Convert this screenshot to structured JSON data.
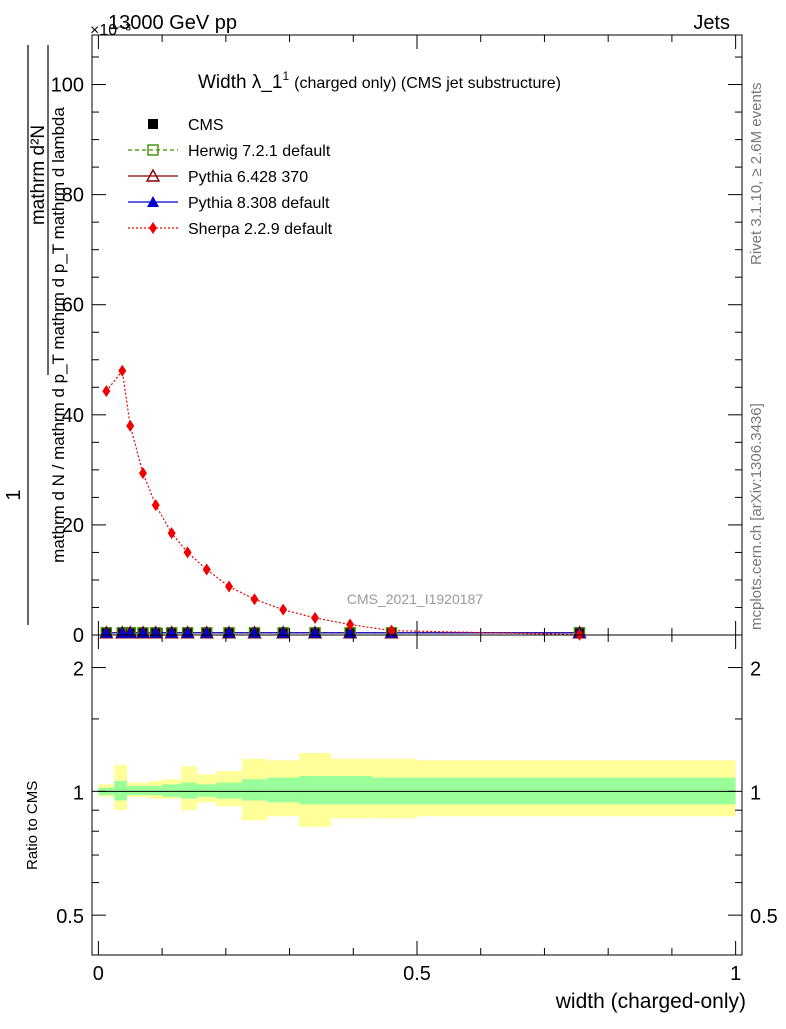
{
  "header": {
    "left": "13000 GeV pp",
    "right": "Jets",
    "exponent": "×10⁻³"
  },
  "side_labels": {
    "rivet": "Rivet 3.1.10, ≥ 2.6M events",
    "mcplots": "mcplots.cern.ch [arXiv:1306.3436]"
  },
  "watermark": "CMS_2021_I1920187",
  "chart_data": [
    {
      "panel": "main",
      "type": "line",
      "title": "Width λ_1¹ (charged only) (CMS jet substructure)",
      "title_main": "Width λ_1",
      "title_sup": "1",
      "title_rest": "(charged only) (CMS jet substructure)",
      "ylabel_num": "mathrm d²N",
      "ylabel_den": "mathrm d N / mathrm d p_T mathrm d p_T mathrm d lambda",
      "ylabel_one": "1",
      "ylim": [
        0,
        109
      ],
      "yticks": [
        0,
        20,
        40,
        60,
        80,
        100
      ],
      "xlim": [
        -0.01,
        1.01
      ],
      "x": [
        0.0125,
        0.0375,
        0.05,
        0.07,
        0.09,
        0.115,
        0.14,
        0.17,
        0.205,
        0.245,
        0.29,
        0.34,
        0.395,
        0.46,
        0.755
      ],
      "series": [
        {
          "name": "CMS",
          "marker": "square-filled",
          "color": "#000000",
          "values": [
            0.4,
            0.4,
            0.4,
            0.4,
            0.4,
            0.4,
            0.4,
            0.4,
            0.4,
            0.4,
            0.4,
            0.4,
            0.4,
            0.4,
            0.4
          ]
        },
        {
          "name": "Herwig 7.2.1 default",
          "marker": "square-open",
          "color": "#3a8f00",
          "line": "dashed",
          "values": [
            0.4,
            0.4,
            0.4,
            0.4,
            0.4,
            0.4,
            0.4,
            0.4,
            0.4,
            0.4,
            0.4,
            0.4,
            0.4,
            0.4,
            0.4
          ]
        },
        {
          "name": "Pythia 6.428 370",
          "marker": "triangle-open",
          "color": "#8b0000",
          "line": "solid",
          "values": [
            0.4,
            0.4,
            0.4,
            0.4,
            0.4,
            0.4,
            0.4,
            0.4,
            0.4,
            0.4,
            0.4,
            0.4,
            0.4,
            0.4,
            0.4
          ]
        },
        {
          "name": "Pythia 8.308 default",
          "marker": "triangle-filled",
          "color": "#0000cc",
          "line": "solid",
          "values": [
            0.4,
            0.4,
            0.4,
            0.4,
            0.4,
            0.4,
            0.4,
            0.4,
            0.4,
            0.4,
            0.4,
            0.4,
            0.4,
            0.4,
            0.4
          ]
        },
        {
          "name": "Sherpa 2.2.9 default",
          "marker": "diamond-filled",
          "color": "#ee0000",
          "line": "dotted",
          "values": [
            44.3,
            48.0,
            38.0,
            29.4,
            23.6,
            18.5,
            15.0,
            11.9,
            8.8,
            6.5,
            4.6,
            3.1,
            1.9,
            0.8,
            0.05
          ]
        }
      ]
    },
    {
      "panel": "ratio",
      "type": "area",
      "ylabel": "Ratio to CMS",
      "xlabel": "width (charged-only)",
      "ylim": [
        0.4,
        2.4
      ],
      "yscale": "log",
      "yticks": [
        0.5,
        1,
        2
      ],
      "xticks": [
        0,
        0.5,
        1
      ],
      "bins": [
        0,
        0.025,
        0.045,
        0.06,
        0.08,
        0.1,
        0.13,
        0.155,
        0.185,
        0.225,
        0.265,
        0.315,
        0.365,
        0.43,
        0.5,
        1.0
      ],
      "stat_band_low": [
        0.98,
        0.95,
        0.98,
        0.98,
        0.98,
        0.97,
        0.96,
        0.97,
        0.96,
        0.95,
        0.94,
        0.93,
        0.93,
        0.93,
        0.93
      ],
      "stat_band_high": [
        1.02,
        1.06,
        1.03,
        1.03,
        1.03,
        1.04,
        1.05,
        1.04,
        1.05,
        1.07,
        1.08,
        1.09,
        1.09,
        1.08,
        1.08
      ],
      "syst_band_low": [
        0.97,
        0.9,
        0.97,
        0.97,
        0.96,
        0.96,
        0.9,
        0.94,
        0.92,
        0.85,
        0.87,
        0.82,
        0.86,
        0.86,
        0.87
      ],
      "syst_band_high": [
        1.04,
        1.16,
        1.05,
        1.05,
        1.06,
        1.07,
        1.15,
        1.1,
        1.12,
        1.2,
        1.19,
        1.24,
        1.2,
        1.2,
        1.19
      ],
      "line_at": 1
    }
  ]
}
